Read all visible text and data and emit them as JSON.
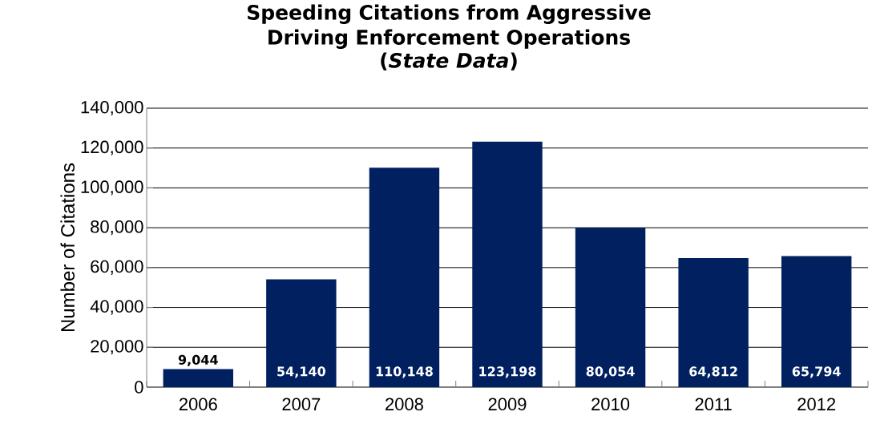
{
  "chart_data": {
    "type": "bar",
    "title": "Speeding Citations from Aggressive Driving Enforcement Operations",
    "subtitle": "(*State Data*)",
    "ylabel": "Number of Citations",
    "categories": [
      "2006",
      "2007",
      "2008",
      "2009",
      "2010",
      "2011",
      "2012"
    ],
    "values": [
      9044,
      54140,
      110148,
      123198,
      80054,
      64812,
      65794
    ],
    "value_labels": [
      "9,044",
      "54,140",
      "110,148",
      "123,198",
      "80,054",
      "64,812",
      "65,794"
    ],
    "color": "#002060",
    "ylim": [
      0,
      140000
    ],
    "yticks": [
      {
        "value": 0,
        "label": "0"
      },
      {
        "value": 20000,
        "label": "20,000"
      },
      {
        "value": 40000,
        "label": "40,000"
      },
      {
        "value": 60000,
        "label": "60,000"
      },
      {
        "value": 80000,
        "label": "80,000"
      },
      {
        "value": 100000,
        "label": "100,000"
      },
      {
        "value": 120000,
        "label": "120,000"
      },
      {
        "value": 140000,
        "label": "140,000"
      }
    ],
    "grid": "y"
  }
}
